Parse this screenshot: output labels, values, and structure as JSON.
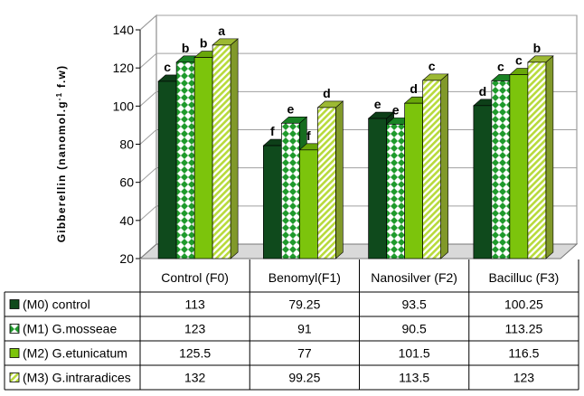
{
  "chart_data": {
    "type": "bar",
    "style": "3d-clustered-with-data-table",
    "title": "",
    "xlabel": "",
    "ylabel_parts": {
      "prefix": "Gibberellin (nanomol.g",
      "sup": "-1",
      "suffix": " f.w)"
    },
    "ylim": [
      20,
      140
    ],
    "yticks": [
      20,
      40,
      60,
      80,
      100,
      120,
      140
    ],
    "grid": true,
    "legend": "left-in-data-table",
    "categories": [
      "Control (F0)",
      "Benomyl(F1)",
      "Nanosilver (F2)",
      "Bacilluc (F3)"
    ],
    "series": [
      {
        "name": "(M0) control",
        "values": [
          113,
          79.25,
          93.5,
          100.25
        ],
        "value_labels": [
          "113",
          "79.25",
          "93.5",
          "100.25"
        ],
        "letters": [
          "c",
          "f",
          "e",
          "d"
        ],
        "color": "#0f4a1c",
        "pattern": "solid"
      },
      {
        "name": "(M1) G.mosseae",
        "values": [
          123,
          91,
          90.5,
          113.25
        ],
        "value_labels": [
          "123",
          "91",
          "90.5",
          "113.25"
        ],
        "letters": [
          "b",
          "e",
          "e",
          "c"
        ],
        "color": "#1f9a2c",
        "pattern": "diamond-checker"
      },
      {
        "name": "(M2) G.etunicatum",
        "values": [
          125.5,
          77,
          101.5,
          116.5
        ],
        "value_labels": [
          "125.5",
          "77",
          "101.5",
          "116.5"
        ],
        "letters": [
          "b",
          "f",
          "d",
          "c"
        ],
        "color": "#7cc40c",
        "pattern": "solid"
      },
      {
        "name": "(M3) G.intraradices",
        "values": [
          132,
          99.25,
          113.5,
          123
        ],
        "value_labels": [
          "132",
          "99.25",
          "113.5",
          "123"
        ],
        "letters": [
          "a",
          "d",
          "c",
          "b"
        ],
        "color": "#b8da3c",
        "pattern": "diagonal-hatch"
      }
    ]
  }
}
